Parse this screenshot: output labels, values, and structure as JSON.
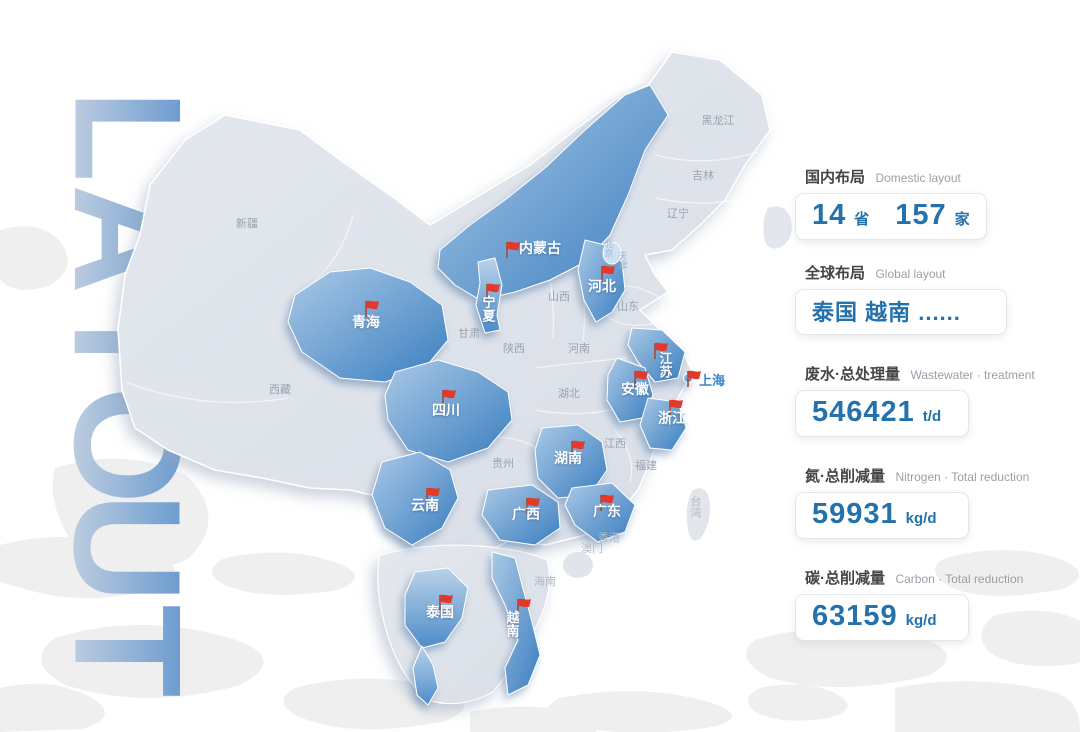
{
  "watermark": {
    "text": "LAYOUT",
    "letters": [
      "L",
      "A",
      "Y",
      "O",
      "U",
      "T"
    ]
  },
  "panel": {
    "domestic": {
      "label_zh": "国内布局",
      "label_en": "Domestic layout",
      "stats": [
        {
          "value": "14",
          "unit": "省"
        },
        {
          "value": "157",
          "unit": "家"
        }
      ]
    },
    "global": {
      "label_zh": "全球布局",
      "label_en": "Global layout",
      "value": "泰国 越南 ......"
    },
    "metrics": [
      {
        "label_zh": "废水·总处理量",
        "label_en": "Wastewater · treatment",
        "value": "546421",
        "unit": "t/d"
      },
      {
        "label_zh": "氮·总削减量",
        "label_en": "Nitrogen · Total reduction",
        "value": "59931",
        "unit": "kg/d"
      },
      {
        "label_zh": "碳·总削减量",
        "label_en": "Carbon · Total reduction",
        "value": "63159",
        "unit": "kg/d"
      }
    ]
  },
  "map": {
    "flags": [
      {
        "name": "内蒙古"
      },
      {
        "name": "宁夏"
      },
      {
        "name": "河北"
      },
      {
        "name": "青海"
      },
      {
        "name": "四川"
      },
      {
        "name": "江苏"
      },
      {
        "name": "安徽"
      },
      {
        "name": "上海"
      },
      {
        "name": "浙江"
      },
      {
        "name": "湖南"
      },
      {
        "name": "云南"
      },
      {
        "name": "广西"
      },
      {
        "name": "广东"
      },
      {
        "name": "泰国"
      },
      {
        "name": "越南"
      }
    ],
    "regions": [
      {
        "name": "黑龙江"
      },
      {
        "name": "吉林"
      },
      {
        "name": "辽宁"
      },
      {
        "name": "北京"
      },
      {
        "name": "天津"
      },
      {
        "name": "山西"
      },
      {
        "name": "山东"
      },
      {
        "name": "甘肃"
      },
      {
        "name": "陕西"
      },
      {
        "name": "河南"
      },
      {
        "name": "湖北"
      },
      {
        "name": "新疆"
      },
      {
        "name": "西藏"
      },
      {
        "name": "贵州"
      },
      {
        "name": "江西"
      },
      {
        "name": "福建"
      },
      {
        "name": "台湾"
      },
      {
        "name": "香港"
      },
      {
        "name": "澳门"
      },
      {
        "name": "海南"
      }
    ],
    "colors": {
      "highlight_deep": "#3b7ec0",
      "highlight_light": "#aac9e6",
      "land": "#dfe3ea",
      "flag_red": "#e2392b",
      "stat_blue": "#2372ab"
    }
  }
}
